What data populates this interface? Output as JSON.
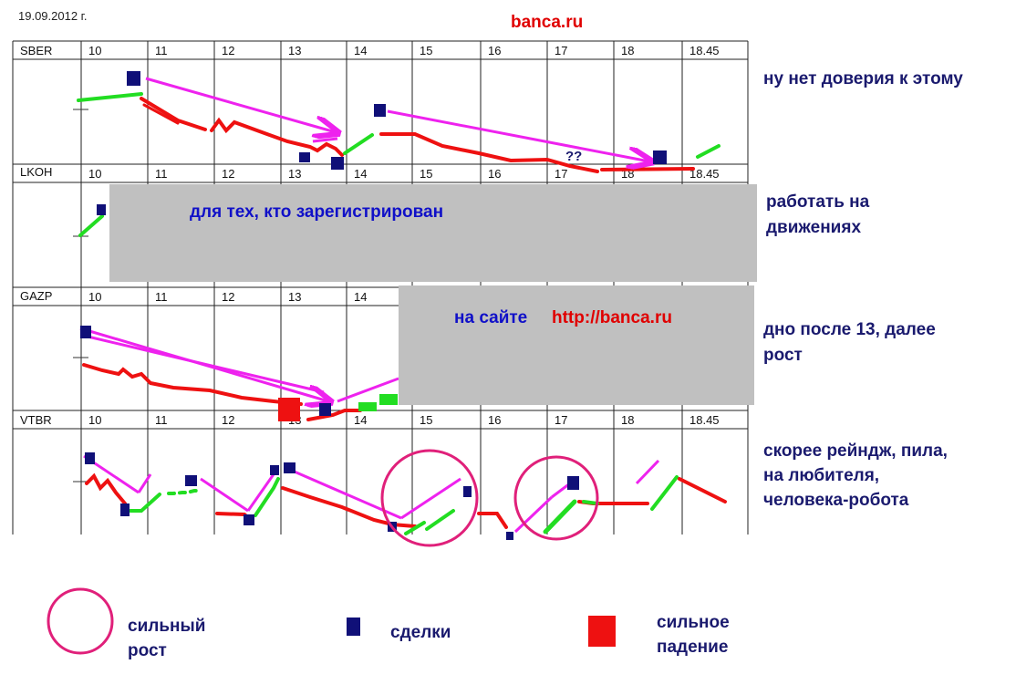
{
  "header": {
    "date": "19.09.2012 г.",
    "site": "banca.ru"
  },
  "chart_data": {
    "type": "line",
    "x_ticks": [
      "10",
      "11",
      "12",
      "13",
      "14",
      "15",
      "16",
      "17",
      "18",
      "18.45"
    ],
    "panels": [
      {
        "ticker": "SBER",
        "comment": [
          "ну нет доверия к этому"
        ],
        "annotation": "??"
      },
      {
        "ticker": "LKOH",
        "comment": [
          "работать на",
          "движениях"
        ]
      },
      {
        "ticker": "GAZP",
        "comment": [
          "дно после 13, далее",
          "рост"
        ]
      },
      {
        "ticker": "VTBR",
        "comment": [
          "скорее рейндж, пила,",
          "на любителя,",
          "человека-робота"
        ]
      }
    ]
  },
  "overlays": {
    "registered": "для тех, кто зарегистрирован",
    "on_site": "на сайте",
    "site_url": "http://banca.ru"
  },
  "legend": {
    "circle": [
      "сильный",
      "рост"
    ],
    "square": "сделки",
    "red_square": [
      "сильное",
      "падение"
    ]
  },
  "colors": {
    "up": "#22dd22",
    "down": "#ee1111",
    "arrow": "#ee22ee",
    "deal": "#101078",
    "circle": "#e0207a",
    "overlay": "#c0c0c0"
  }
}
